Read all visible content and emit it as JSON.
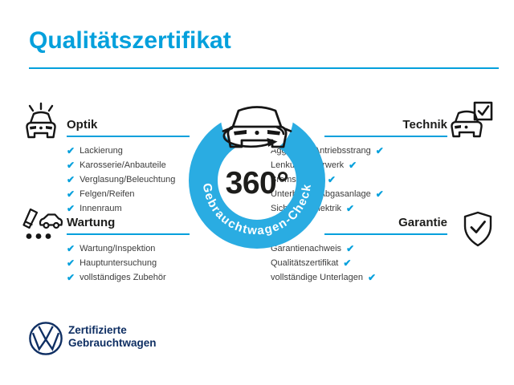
{
  "title": "Qualitätszertifikat",
  "colors": {
    "accent": "#04a0dc",
    "ring": "#2aace2",
    "dark": "#1d1d1b",
    "text": "#3c3c3c",
    "navy": "#0f2f63"
  },
  "checkmark": "✔",
  "center": {
    "degree_label": "360°",
    "ring_label": "Gebrauchtwagen-Check",
    "icon": "rotating-car-icon"
  },
  "sections": [
    {
      "id": "optik",
      "label": "Optik",
      "icon": "shiny-car-icon",
      "align": "left",
      "items": [
        "Lackierung",
        "Karosserie/Anbauteile",
        "Verglasung/Beleuchtung",
        "Felgen/Reifen",
        "Innenraum"
      ]
    },
    {
      "id": "technik",
      "label": "Technik",
      "icon": "car-checkbox-icon",
      "align": "right",
      "items": [
        "Aggregate/Antriebsstrang",
        "Lenkung/Fahrwerk",
        "Bremsanlage",
        "Unterboden/Abgasanlage",
        "Sicherheit/Elektrik"
      ]
    },
    {
      "id": "wartung",
      "label": "Wartung",
      "icon": "pen-car-checklist-icon",
      "align": "left",
      "items": [
        "Wartung/Inspektion",
        "Hauptuntersuchung",
        "vollständiges Zubehör"
      ]
    },
    {
      "id": "garantie",
      "label": "Garantie",
      "icon": "shield-check-icon",
      "align": "right",
      "items": [
        "Garantienachweis",
        "Qualitätszertifikat",
        "vollständige Unterlagen"
      ]
    }
  ],
  "footer": {
    "logo": "vw-logo",
    "line1": "Zertifizierte",
    "line2": "Gebrauchtwagen"
  }
}
